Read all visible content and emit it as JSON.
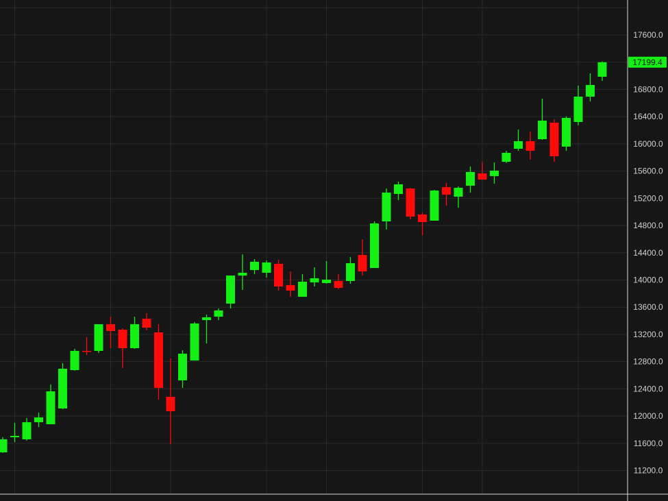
{
  "chart_data": {
    "type": "candlestick",
    "title": "",
    "xlabel": "",
    "ylabel": "",
    "ylim": [
      10860,
      18115
    ],
    "grid": true,
    "y_ticks": [
      "17600.0",
      "16800.0",
      "16400.0",
      "16000.0",
      "15600.0",
      "15200.0",
      "14800.0",
      "14400.0",
      "14000.0",
      "13600.0",
      "13200.0",
      "12800.0",
      "12400.0",
      "12000.0",
      "11600.0",
      "11200.0"
    ],
    "last_price": "17199.4",
    "colors": {
      "background": "#161616",
      "grid": "#2b2b2b",
      "up": "#14f014",
      "down": "#ff0a0a",
      "axis_text": "#d0d0d0",
      "last_price_bg": "#14f014"
    },
    "candles_ohlc": [
      [
        11467,
        11690,
        11460,
        11659
      ],
      [
        11689,
        11900,
        11618,
        11709
      ],
      [
        11659,
        11971,
        11639,
        11910
      ],
      [
        11910,
        12051,
        11840,
        11981
      ],
      [
        11880,
        12464,
        11880,
        12364
      ],
      [
        12112,
        12777,
        12102,
        12696
      ],
      [
        12676,
        12988,
        12666,
        12958
      ],
      [
        12958,
        13159,
        12897,
        12948
      ],
      [
        12958,
        13350,
        12928,
        13350
      ],
      [
        13350,
        13461,
        12998,
        13250
      ],
      [
        13270,
        13290,
        12706,
        12998
      ],
      [
        12998,
        13461,
        12988,
        13350
      ],
      [
        13431,
        13511,
        13260,
        13300
      ],
      [
        13230,
        13350,
        12243,
        12414
      ],
      [
        12283,
        12847,
        11588,
        12072
      ],
      [
        12525,
        12968,
        12414,
        12917
      ],
      [
        12817,
        13381,
        12817,
        13361
      ],
      [
        13411,
        13491,
        13068,
        13451
      ],
      [
        13461,
        13582,
        13411,
        13552
      ],
      [
        13653,
        14065,
        13582,
        14065
      ],
      [
        14065,
        14378,
        13854,
        14106
      ],
      [
        14146,
        14307,
        14086,
        14267
      ],
      [
        14106,
        14287,
        14035,
        14257
      ],
      [
        14237,
        14297,
        13844,
        13904
      ],
      [
        13925,
        14126,
        13753,
        13844
      ],
      [
        13753,
        14086,
        13753,
        13975
      ],
      [
        13965,
        14186,
        13904,
        14025
      ],
      [
        13955,
        14277,
        13945,
        14005
      ],
      [
        13985,
        14086,
        13864,
        13884
      ],
      [
        13985,
        14337,
        13945,
        14247
      ],
      [
        14367,
        14599,
        14065,
        14126
      ],
      [
        14176,
        14861,
        14176,
        14831
      ],
      [
        14861,
        15344,
        14740,
        15284
      ],
      [
        15264,
        15445,
        15173,
        15405
      ],
      [
        15344,
        15354,
        14891,
        14931
      ],
      [
        14962,
        14992,
        14659,
        14851
      ],
      [
        14871,
        15324,
        14871,
        15314
      ],
      [
        15364,
        15425,
        15093,
        15254
      ],
      [
        15224,
        15374,
        15062,
        15354
      ],
      [
        15385,
        15667,
        15284,
        15586
      ],
      [
        15566,
        15737,
        15475,
        15475
      ],
      [
        15526,
        15727,
        15415,
        15606
      ],
      [
        15737,
        15898,
        15717,
        15868
      ],
      [
        15928,
        16210,
        15898,
        16039
      ],
      [
        16039,
        16180,
        15767,
        15898
      ],
      [
        16069,
        16663,
        16059,
        16341
      ],
      [
        16311,
        16361,
        15737,
        15818
      ],
      [
        15959,
        16402,
        15898,
        16381
      ],
      [
        16321,
        16855,
        16271,
        16694
      ],
      [
        16694,
        17036,
        16623,
        16865
      ],
      [
        16986,
        17210,
        16925,
        17199.4
      ]
    ]
  }
}
